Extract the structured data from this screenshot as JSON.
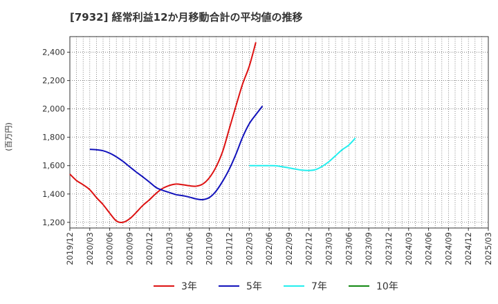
{
  "chart_data": {
    "type": "line",
    "title": "[7932]  経常利益12か月移動合計の平均値の推移",
    "ylabel": "(百万円)",
    "xlabel": "",
    "ylim": [
      1160,
      2510
    ],
    "yticks": [
      1200,
      1400,
      1600,
      1800,
      2000,
      2200,
      2400
    ],
    "ytick_labels": [
      "1,200",
      "1,400",
      "1,600",
      "1,800",
      "2,000",
      "2,200",
      "2,400"
    ],
    "xticks": [
      "2019/12",
      "2020/03",
      "2020/06",
      "2020/09",
      "2020/12",
      "2021/03",
      "2021/06",
      "2021/09",
      "2021/12",
      "2022/03",
      "2022/06",
      "2022/09",
      "2022/12",
      "2023/03",
      "2023/06",
      "2023/09",
      "2023/12",
      "2024/03",
      "2024/06",
      "2024/09",
      "2024/12",
      "2025/03"
    ],
    "grid": true,
    "series": [
      {
        "name": "3年",
        "color": "#dd1111",
        "start": 0,
        "values": [
          1540,
          1495,
          1465,
          1430,
          1375,
          1325,
          1265,
          1210,
          1200,
          1225,
          1270,
          1320,
          1360,
          1405,
          1440,
          1460,
          1470,
          1465,
          1458,
          1455,
          1470,
          1515,
          1590,
          1700,
          1860,
          2020,
          2175,
          2300,
          2470
        ]
      },
      {
        "name": "5年",
        "color": "#1111bb",
        "start": 1,
        "values": [
          1715,
          1712,
          1705,
          1688,
          1662,
          1630,
          1592,
          1555,
          1520,
          1483,
          1445,
          1425,
          1410,
          1395,
          1388,
          1378,
          1365,
          1360,
          1375,
          1420,
          1490,
          1575,
          1680,
          1800,
          1895,
          1960,
          2020
        ]
      },
      {
        "name": "7年",
        "color": "#22eeee",
        "start": 9,
        "values": [
          1600,
          1600,
          1600,
          1600,
          1599,
          1592,
          1584,
          1575,
          1568,
          1566,
          1572,
          1595,
          1628,
          1670,
          1712,
          1745,
          1795
        ]
      },
      {
        "name": "10年",
        "color": "#118811",
        "start": 0,
        "values": []
      }
    ]
  }
}
